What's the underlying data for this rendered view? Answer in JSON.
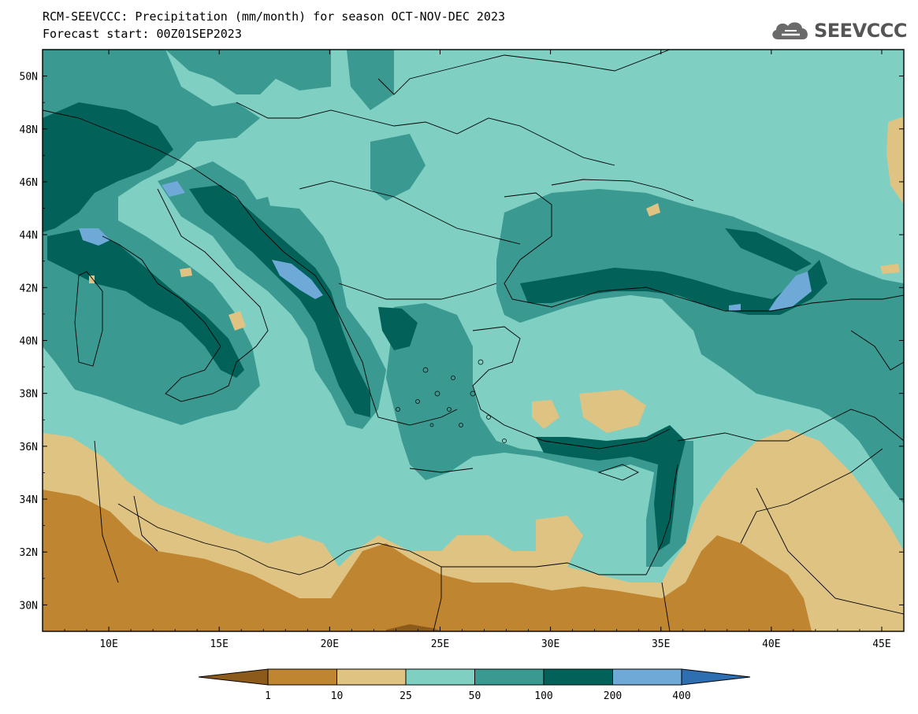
{
  "title_line1": "RCM-SEEVCCC: Precipitation (mm/month) for season OCT-NOV-DEC 2023",
  "title_line2": "Forecast start: 00Z01SEP2023",
  "logo_text": "SEEVCCC",
  "map": {
    "type": "contour-map",
    "variable": "Precipitation (mm/month)",
    "season": "OCT-NOV-DEC 2023",
    "extent": {
      "lon": [
        7,
        46
      ],
      "lat": [
        29,
        51
      ]
    },
    "lat_ticks": [
      "50N",
      "48N",
      "46N",
      "44N",
      "42N",
      "40N",
      "38N",
      "36N",
      "34N",
      "32N",
      "30N"
    ],
    "lon_ticks": [
      "10E",
      "15E",
      "20E",
      "25E",
      "30E",
      "35E",
      "40E",
      "45E"
    ]
  },
  "legend": {
    "ticks": [
      "1",
      "10",
      "25",
      "50",
      "100",
      "200",
      "400"
    ],
    "colors": [
      "#8c5a1a",
      "#c08530",
      "#dfc382",
      "#7fcfc2",
      "#3a9990",
      "#02625a",
      "#6ea9d8",
      "#2d6fb0"
    ]
  }
}
